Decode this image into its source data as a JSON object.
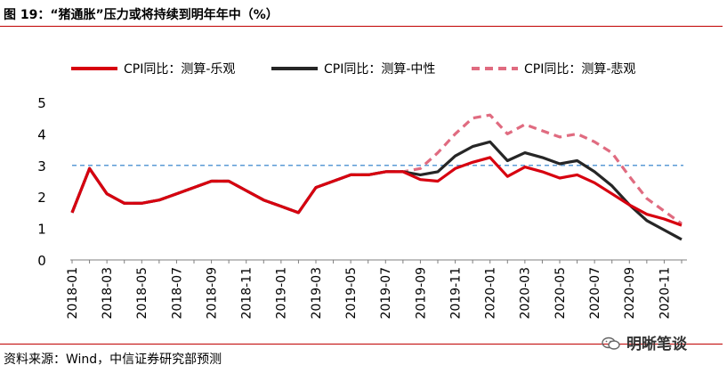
{
  "header": {
    "title": "图 19：“猪通胀”压力或将持续到明年年中（%）"
  },
  "footer": {
    "source": "资料来源：Wind，中信证券研究部预测",
    "watermark": "明晰笔谈"
  },
  "colors": {
    "rule": "#c00000",
    "optimistic": "#d7000f",
    "neutral": "#262626",
    "pessimistic": "#e06b80",
    "threshold": "#5b9bd5"
  },
  "chart_data": {
    "type": "line",
    "title": "",
    "xlabel": "",
    "ylabel": "",
    "ylim": [
      0,
      5
    ],
    "yticks": [
      0,
      1,
      2,
      3,
      4,
      5
    ],
    "grid": false,
    "legend_position": "top",
    "x_tick_labels": [
      "2018-01",
      "2018-03",
      "2018-05",
      "2018-07",
      "2018-09",
      "2018-11",
      "2019-01",
      "2019-03",
      "2019-05",
      "2019-07",
      "2019-09",
      "2019-11",
      "2020-01",
      "2020-03",
      "2020-05",
      "2020-07",
      "2020-09",
      "2020-11"
    ],
    "x": [
      "2018-01",
      "2018-02",
      "2018-03",
      "2018-04",
      "2018-05",
      "2018-06",
      "2018-07",
      "2018-08",
      "2018-09",
      "2018-10",
      "2018-11",
      "2018-12",
      "2019-01",
      "2019-02",
      "2019-03",
      "2019-04",
      "2019-05",
      "2019-06",
      "2019-07",
      "2019-08",
      "2019-09",
      "2019-10",
      "2019-11",
      "2019-12",
      "2020-01",
      "2020-02",
      "2020-03",
      "2020-04",
      "2020-05",
      "2020-06",
      "2020-07",
      "2020-08",
      "2020-09",
      "2020-10",
      "2020-11",
      "2020-12"
    ],
    "reference_line": {
      "y": 3,
      "style": "dashed"
    },
    "series": [
      {
        "name": "CPI同比：测算-乐观",
        "style": "solid",
        "values": [
          1.5,
          2.9,
          2.1,
          1.8,
          1.8,
          1.9,
          2.1,
          2.3,
          2.5,
          2.5,
          2.2,
          1.9,
          1.7,
          1.5,
          2.3,
          2.5,
          2.7,
          2.7,
          2.8,
          2.8,
          2.55,
          2.5,
          2.9,
          3.1,
          3.25,
          2.65,
          2.95,
          2.8,
          2.6,
          2.7,
          2.45,
          2.1,
          1.75,
          1.45,
          1.3,
          1.1
        ]
      },
      {
        "name": "CPI同比：测算-中性",
        "style": "solid",
        "values": [
          1.5,
          2.9,
          2.1,
          1.8,
          1.8,
          1.9,
          2.1,
          2.3,
          2.5,
          2.5,
          2.2,
          1.9,
          1.7,
          1.5,
          2.3,
          2.5,
          2.7,
          2.7,
          2.8,
          2.8,
          2.7,
          2.8,
          3.3,
          3.6,
          3.75,
          3.15,
          3.4,
          3.25,
          3.05,
          3.15,
          2.8,
          2.35,
          1.75,
          1.25,
          0.95,
          0.65
        ]
      },
      {
        "name": "CPI同比：测算-悲观",
        "style": "dashed",
        "values": [
          1.5,
          2.9,
          2.1,
          1.8,
          1.8,
          1.9,
          2.1,
          2.3,
          2.5,
          2.5,
          2.2,
          1.9,
          1.7,
          1.5,
          2.3,
          2.5,
          2.7,
          2.7,
          2.8,
          2.8,
          2.9,
          3.4,
          4.0,
          4.5,
          4.6,
          4.0,
          4.3,
          4.1,
          3.9,
          4.0,
          3.75,
          3.4,
          2.65,
          1.95,
          1.55,
          1.15
        ]
      }
    ]
  }
}
